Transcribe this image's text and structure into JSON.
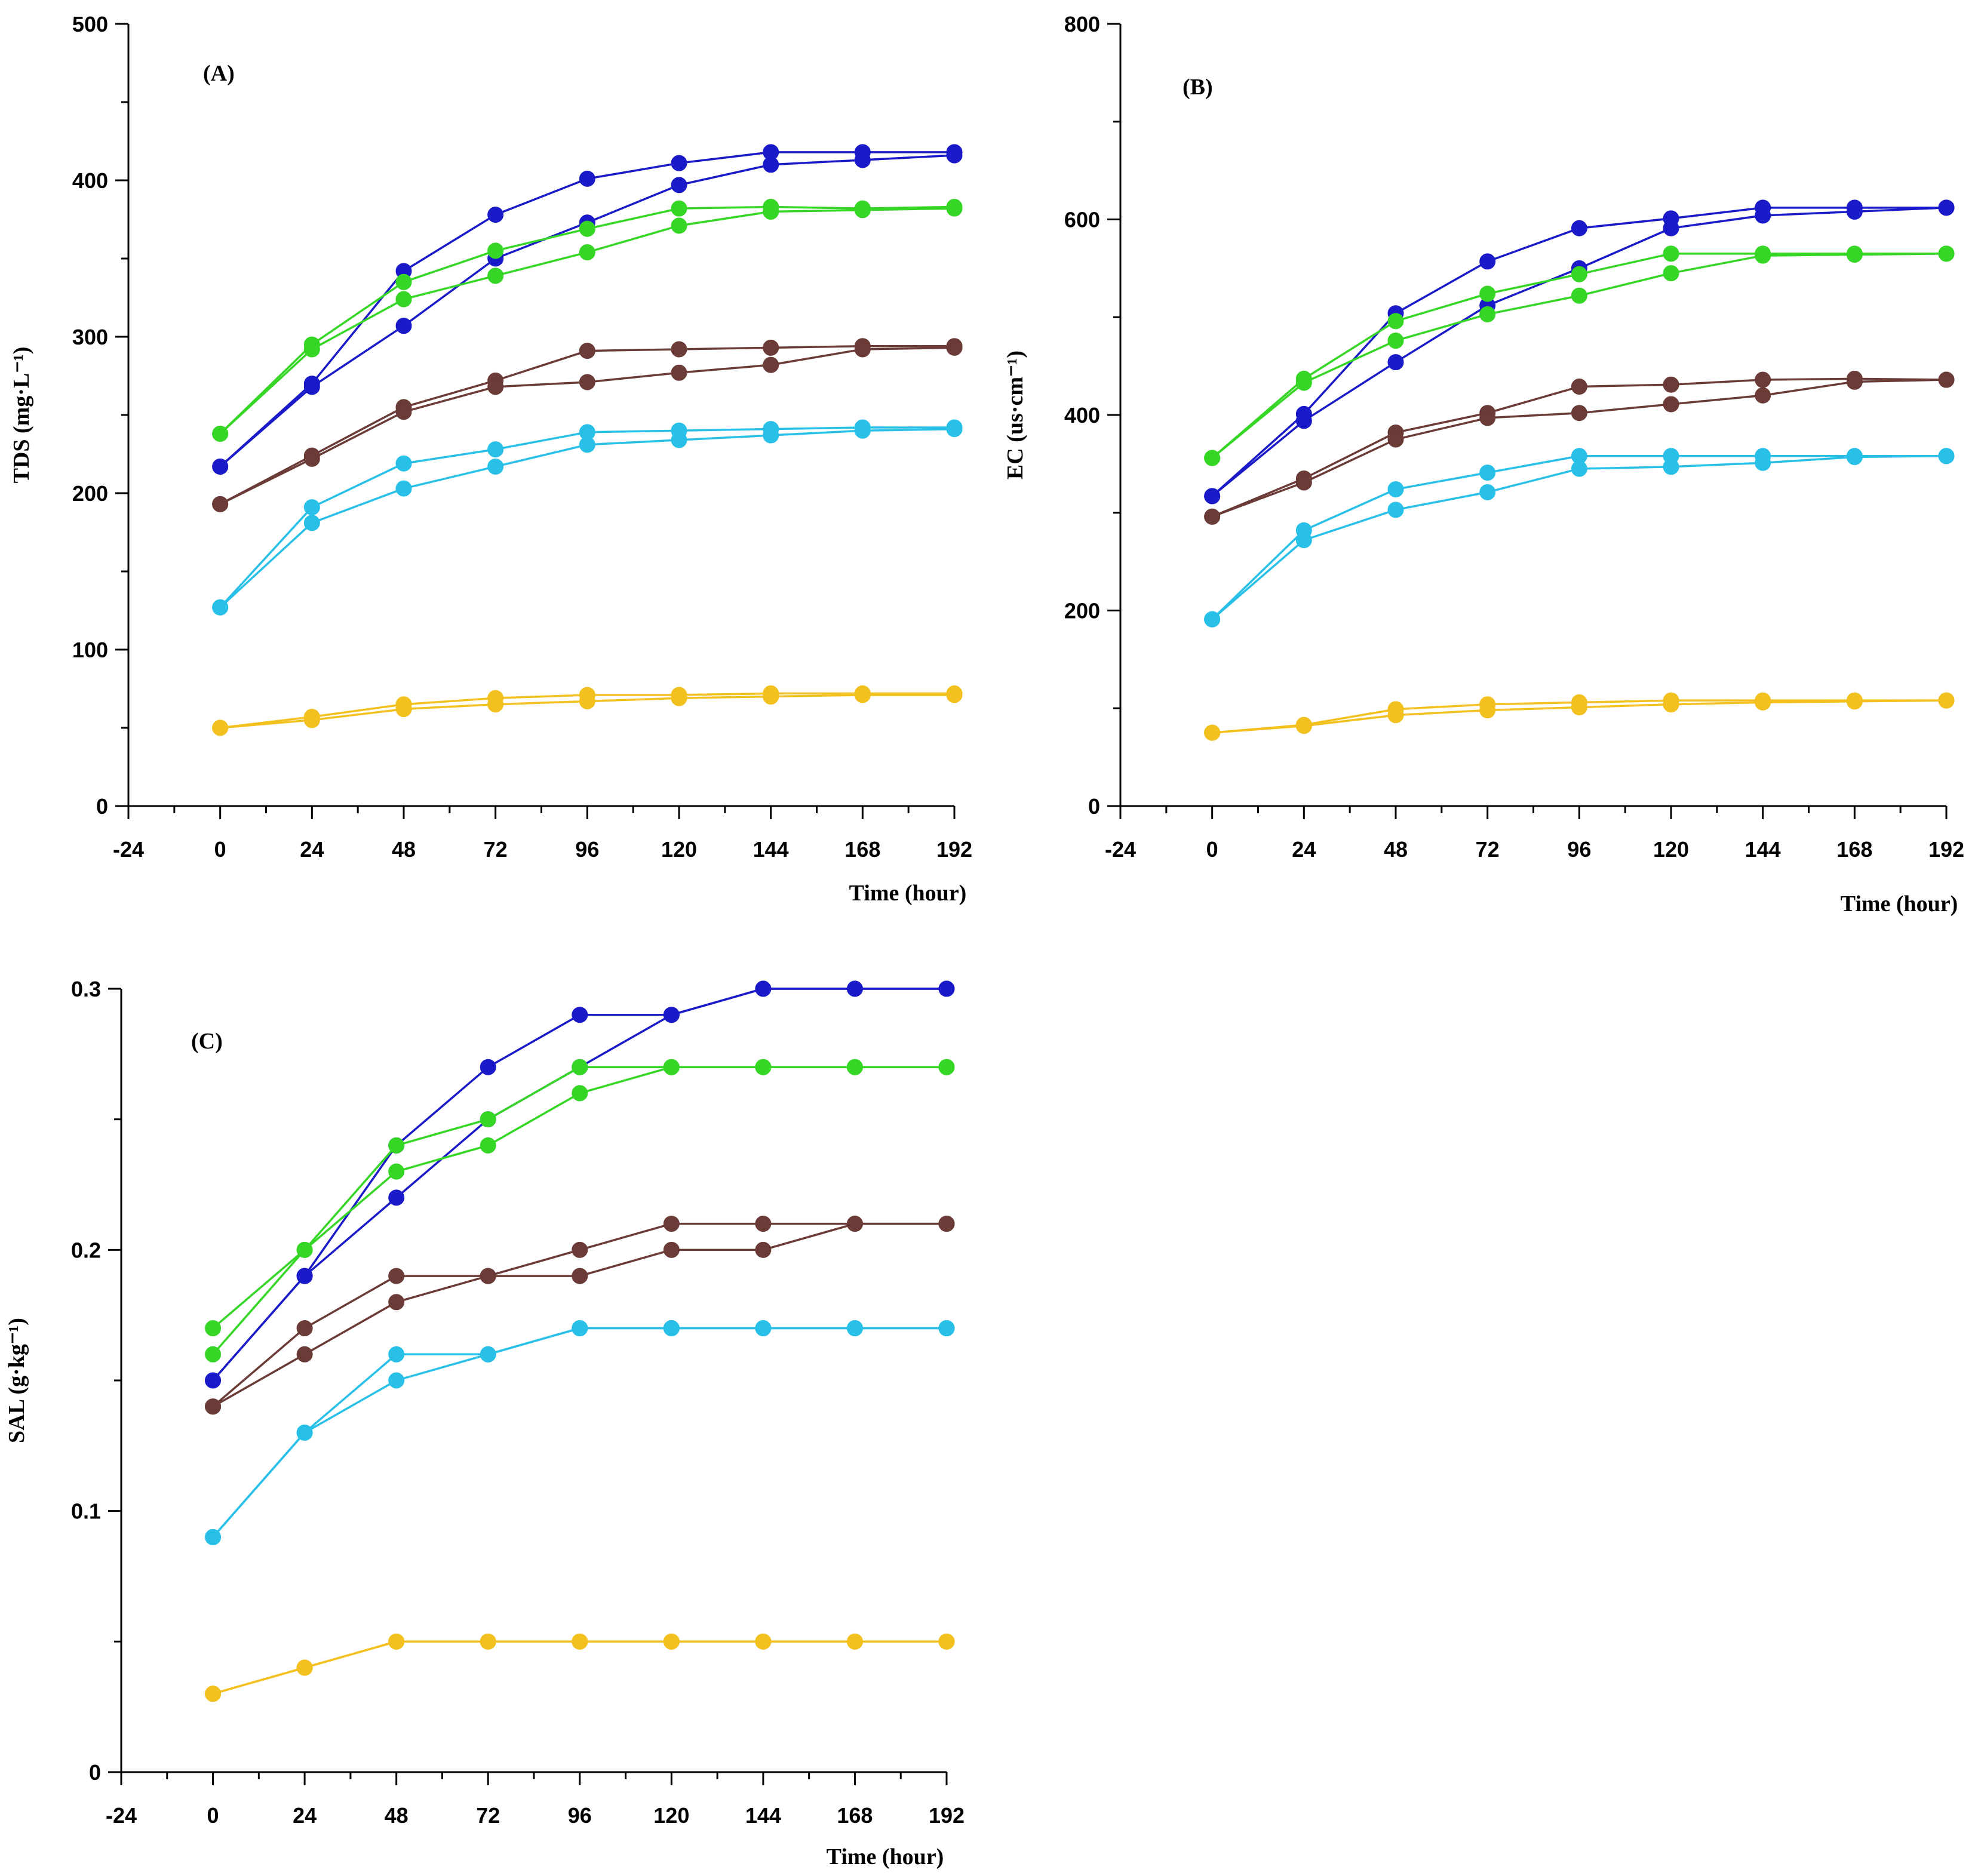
{
  "series_colors": [
    "#1a1ac8",
    "#36d626",
    "#6b3b37",
    "#29c0e8",
    "#f2c11f"
  ],
  "chart_data": [
    {
      "type": "line",
      "panel_label": "(A)",
      "ylabel": "TDS (mg·L⁻¹)",
      "xlabel": "Time (hour)",
      "x_ticks": [
        -24,
        0,
        24,
        48,
        72,
        96,
        120,
        144,
        168,
        192
      ],
      "y_ticks": [
        0,
        100,
        200,
        300,
        400,
        500
      ],
      "xlim": [
        -24,
        192
      ],
      "ylim": [
        0,
        500
      ],
      "x": [
        0,
        24,
        48,
        72,
        96,
        120,
        144,
        168,
        192
      ],
      "series": [
        {
          "color_index": 0,
          "values": [
            217,
            270,
            342,
            378,
            401,
            411,
            418,
            418,
            418
          ]
        },
        {
          "color_index": 0,
          "values": [
            217,
            268,
            307,
            350,
            373,
            397,
            410,
            413,
            416
          ]
        },
        {
          "color_index": 1,
          "values": [
            238,
            295,
            335,
            355,
            369,
            382,
            383,
            382,
            383
          ]
        },
        {
          "color_index": 1,
          "values": [
            238,
            292,
            324,
            339,
            354,
            371,
            380,
            381,
            382
          ]
        },
        {
          "color_index": 2,
          "values": [
            193,
            224,
            255,
            272,
            291,
            292,
            293,
            294,
            294
          ]
        },
        {
          "color_index": 2,
          "values": [
            193,
            222,
            252,
            268,
            271,
            277,
            282,
            292,
            293
          ]
        },
        {
          "color_index": 3,
          "values": [
            127,
            191,
            219,
            228,
            239,
            240,
            241,
            242,
            242
          ]
        },
        {
          "color_index": 3,
          "values": [
            127,
            181,
            203,
            217,
            231,
            234,
            237,
            240,
            241
          ]
        },
        {
          "color_index": 4,
          "values": [
            50,
            57,
            65,
            69,
            71,
            71,
            72,
            72,
            72
          ]
        },
        {
          "color_index": 4,
          "values": [
            50,
            55,
            62,
            65,
            67,
            69,
            70,
            71,
            71
          ]
        }
      ]
    },
    {
      "type": "line",
      "panel_label": "(B)",
      "ylabel": "EC (us·cm⁻¹)",
      "xlabel": "Time (hour)",
      "x_ticks": [
        -24,
        0,
        24,
        48,
        72,
        96,
        120,
        144,
        168,
        192
      ],
      "y_ticks": [
        0,
        200,
        400,
        600,
        800
      ],
      "xlim": [
        -24,
        192
      ],
      "ylim": [
        0,
        800
      ],
      "x": [
        0,
        24,
        48,
        72,
        96,
        120,
        144,
        168,
        192
      ],
      "series": [
        {
          "color_index": 0,
          "values": [
            317,
            401,
            504,
            557,
            591,
            601,
            612,
            612,
            612
          ]
        },
        {
          "color_index": 0,
          "values": [
            317,
            394,
            454,
            512,
            550,
            591,
            604,
            608,
            612
          ]
        },
        {
          "color_index": 1,
          "values": [
            356,
            437,
            496,
            524,
            544,
            565,
            565,
            565,
            565
          ]
        },
        {
          "color_index": 1,
          "values": [
            356,
            433,
            476,
            503,
            522,
            545,
            563,
            564,
            565
          ]
        },
        {
          "color_index": 2,
          "values": [
            296,
            335,
            382,
            402,
            429,
            431,
            436,
            437,
            436
          ]
        },
        {
          "color_index": 2,
          "values": [
            296,
            331,
            375,
            397,
            402,
            411,
            420,
            434,
            436
          ]
        },
        {
          "color_index": 3,
          "values": [
            191,
            282,
            324,
            341,
            358,
            358,
            358,
            358,
            358
          ]
        },
        {
          "color_index": 3,
          "values": [
            191,
            272,
            303,
            321,
            345,
            347,
            351,
            357,
            358
          ]
        },
        {
          "color_index": 4,
          "values": [
            75,
            83,
            99,
            104,
            106,
            108,
            108,
            108,
            108
          ]
        },
        {
          "color_index": 4,
          "values": [
            75,
            82,
            93,
            98,
            101,
            104,
            106,
            107,
            108
          ]
        }
      ]
    },
    {
      "type": "line",
      "panel_label": "(C)",
      "ylabel": "SAL (g·kg⁻¹)",
      "xlabel": "Time (hour)",
      "x_ticks": [
        -24,
        0,
        24,
        48,
        72,
        96,
        120,
        144,
        168,
        192
      ],
      "y_ticks": [
        0,
        0.1,
        0.2,
        0.3
      ],
      "xlim": [
        -24,
        192
      ],
      "ylim": [
        0,
        0.3
      ],
      "x": [
        0,
        24,
        48,
        72,
        96,
        120,
        144,
        168,
        192
      ],
      "series": [
        {
          "color_index": 0,
          "values": [
            0.15,
            0.19,
            0.24,
            0.27,
            0.29,
            0.29,
            0.3,
            0.3,
            0.3
          ]
        },
        {
          "color_index": 0,
          "values": [
            0.15,
            0.19,
            0.22,
            0.25,
            0.27,
            0.29,
            0.3,
            0.3,
            0.3
          ]
        },
        {
          "color_index": 1,
          "values": [
            0.17,
            0.2,
            0.24,
            0.25,
            0.27,
            0.27,
            0.27,
            0.27,
            0.27
          ]
        },
        {
          "color_index": 1,
          "values": [
            0.16,
            0.2,
            0.23,
            0.24,
            0.26,
            0.27,
            0.27,
            0.27,
            0.27
          ]
        },
        {
          "color_index": 2,
          "values": [
            0.14,
            0.17,
            0.19,
            0.19,
            0.2,
            0.21,
            0.21,
            0.21,
            0.21
          ]
        },
        {
          "color_index": 2,
          "values": [
            0.14,
            0.16,
            0.18,
            0.19,
            0.19,
            0.2,
            0.2,
            0.21,
            0.21
          ]
        },
        {
          "color_index": 3,
          "values": [
            0.09,
            0.13,
            0.16,
            0.16,
            0.17,
            0.17,
            0.17,
            0.17,
            0.17
          ]
        },
        {
          "color_index": 3,
          "values": [
            0.09,
            0.13,
            0.15,
            0.16,
            0.17,
            0.17,
            0.17,
            0.17,
            0.17
          ]
        },
        {
          "color_index": 4,
          "values": [
            0.03,
            0.04,
            0.05,
            0.05,
            0.05,
            0.05,
            0.05,
            0.05,
            0.05
          ]
        },
        {
          "color_index": 4,
          "values": [
            0.03,
            0.04,
            0.05,
            0.05,
            0.05,
            0.05,
            0.05,
            0.05,
            0.05
          ]
        }
      ]
    }
  ]
}
